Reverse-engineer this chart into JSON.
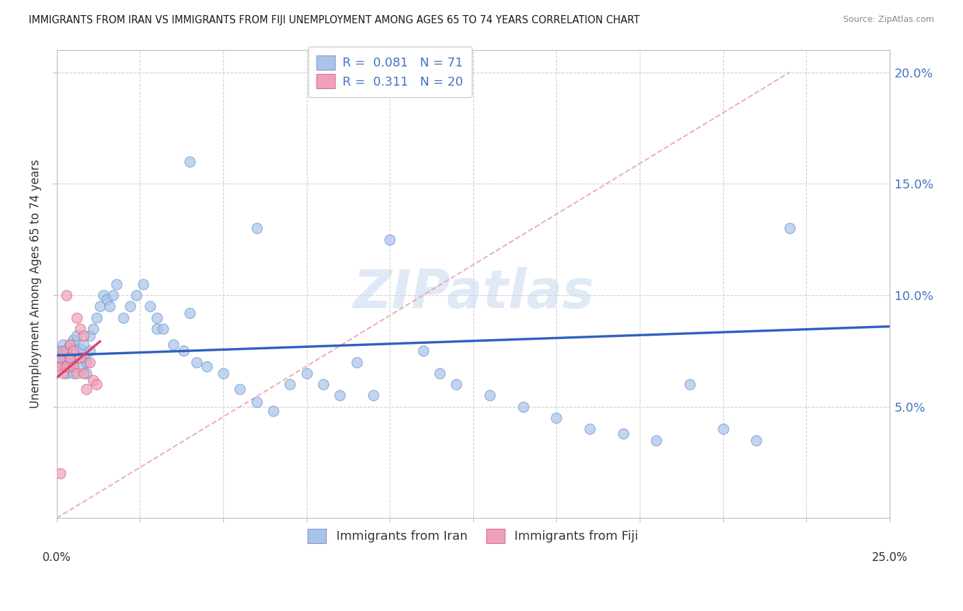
{
  "title": "IMMIGRANTS FROM IRAN VS IMMIGRANTS FROM FIJI UNEMPLOYMENT AMONG AGES 65 TO 74 YEARS CORRELATION CHART",
  "source": "Source: ZipAtlas.com",
  "ylabel": "Unemployment Among Ages 65 to 74 years",
  "legend_label_iran": "Immigrants from Iran",
  "legend_label_fiji": "Immigrants from Fiji",
  "color_iran": "#a8c4e8",
  "color_fiji": "#f0a0b8",
  "trendline_iran_color": "#3060c0",
  "trendline_fiji_color": "#e04060",
  "ref_line_color": "#e8a0b0",
  "watermark": "ZIPatlas",
  "xlim": [
    0.0,
    0.25
  ],
  "ylim": [
    0.0,
    0.21
  ],
  "iran_x": [
    0.001,
    0.001,
    0.002,
    0.002,
    0.002,
    0.003,
    0.003,
    0.003,
    0.004,
    0.004,
    0.004,
    0.005,
    0.005,
    0.005,
    0.006,
    0.006,
    0.007,
    0.007,
    0.008,
    0.008,
    0.009,
    0.009,
    0.01,
    0.01,
    0.011,
    0.012,
    0.013,
    0.014,
    0.015,
    0.016,
    0.017,
    0.018,
    0.02,
    0.022,
    0.024,
    0.026,
    0.028,
    0.03,
    0.03,
    0.032,
    0.035,
    0.038,
    0.04,
    0.04,
    0.042,
    0.045,
    0.05,
    0.055,
    0.06,
    0.06,
    0.065,
    0.07,
    0.075,
    0.08,
    0.085,
    0.09,
    0.095,
    0.1,
    0.11,
    0.115,
    0.12,
    0.13,
    0.14,
    0.15,
    0.16,
    0.17,
    0.18,
    0.19,
    0.2,
    0.21,
    0.22
  ],
  "iran_y": [
    0.07,
    0.075,
    0.068,
    0.073,
    0.078,
    0.065,
    0.07,
    0.075,
    0.068,
    0.072,
    0.078,
    0.065,
    0.07,
    0.08,
    0.075,
    0.082,
    0.068,
    0.076,
    0.072,
    0.078,
    0.065,
    0.07,
    0.075,
    0.082,
    0.085,
    0.09,
    0.095,
    0.1,
    0.098,
    0.095,
    0.1,
    0.105,
    0.09,
    0.095,
    0.1,
    0.105,
    0.095,
    0.09,
    0.085,
    0.085,
    0.078,
    0.075,
    0.092,
    0.16,
    0.07,
    0.068,
    0.065,
    0.058,
    0.052,
    0.13,
    0.048,
    0.06,
    0.065,
    0.06,
    0.055,
    0.07,
    0.055,
    0.125,
    0.075,
    0.065,
    0.06,
    0.055,
    0.05,
    0.045,
    0.04,
    0.038,
    0.035,
    0.06,
    0.04,
    0.035,
    0.13
  ],
  "fiji_x": [
    0.001,
    0.001,
    0.002,
    0.002,
    0.003,
    0.003,
    0.004,
    0.004,
    0.005,
    0.005,
    0.006,
    0.006,
    0.007,
    0.007,
    0.008,
    0.008,
    0.009,
    0.01,
    0.011,
    0.012
  ],
  "fiji_y": [
    0.068,
    0.072,
    0.065,
    0.075,
    0.068,
    0.1,
    0.072,
    0.078,
    0.068,
    0.075,
    0.065,
    0.09,
    0.085,
    0.072,
    0.065,
    0.082,
    0.058,
    0.07,
    0.062,
    0.06
  ],
  "fiji_outlier_x": [
    0.001
  ],
  "fiji_outlier_y": [
    0.02
  ]
}
